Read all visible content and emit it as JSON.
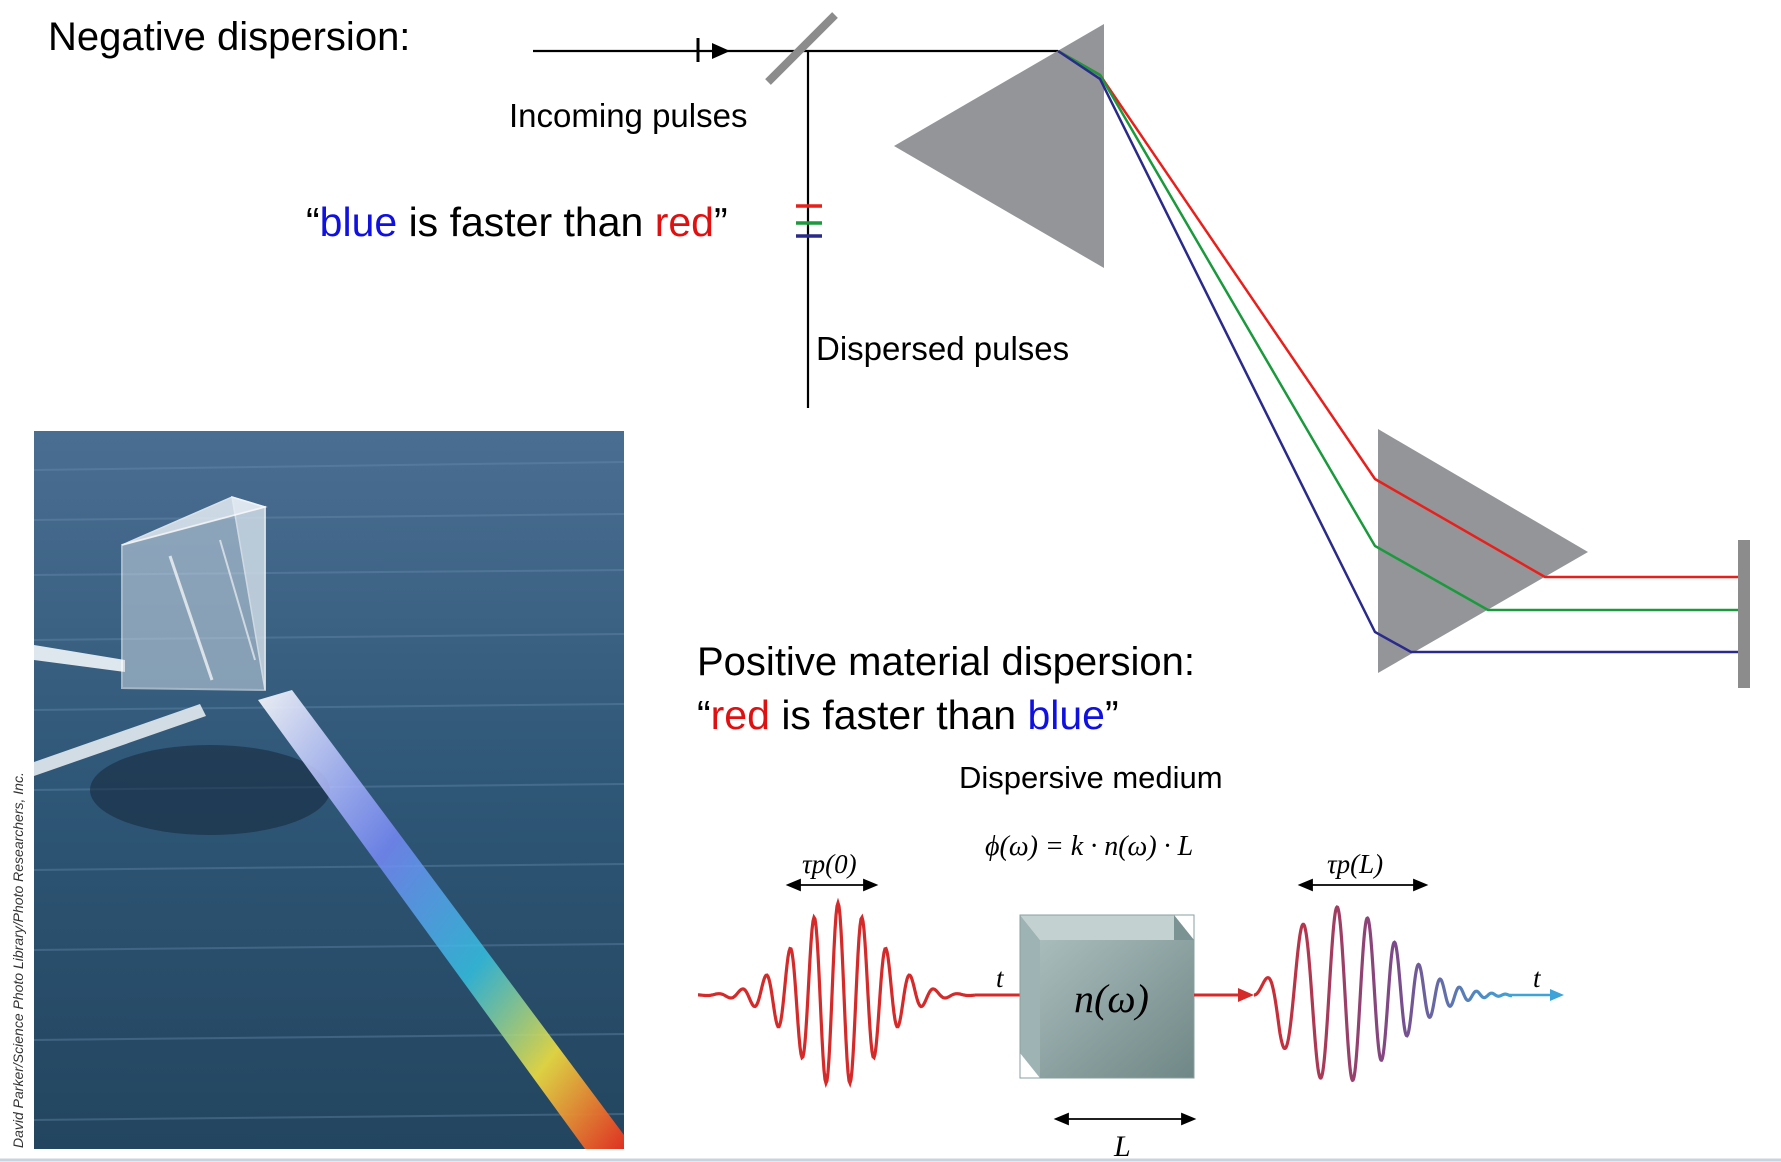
{
  "negative": {
    "title": "Negative dispersion:",
    "incoming_label": "Incoming pulses",
    "dispersed_label": "Dispersed pulses",
    "quote": {
      "open": "“",
      "blue_word": "blue",
      "middle": " is faster than ",
      "red_word": "red",
      "close": "”"
    }
  },
  "positive": {
    "title": "Positive material dispersion:",
    "quote": {
      "open": "“",
      "red_word": "red",
      "middle": " is faster than ",
      "blue_word": "blue",
      "close": "”"
    },
    "medium_label": "Dispersive medium",
    "phase_formula": "ϕ(ω) = k · n(ω) · L",
    "tau_in": "τp(0)",
    "tau_out": "τp(L)",
    "medium_symbol": "n(ω)",
    "length_label": "L",
    "time_label": "t"
  },
  "photo": {
    "credit": "David Parker/Science Photo Library/Photo Researchers, Inc."
  },
  "colors": {
    "red": "#e8201c",
    "green": "#1a9a3c",
    "blue": "#2a2a8c",
    "text_blue": "#1010e0",
    "text_red": "#e01010",
    "prism": "#939598",
    "mirror": "#8c8c8c",
    "wave_red": "#d42a2a",
    "wave_blue": "#3ea3d8"
  }
}
